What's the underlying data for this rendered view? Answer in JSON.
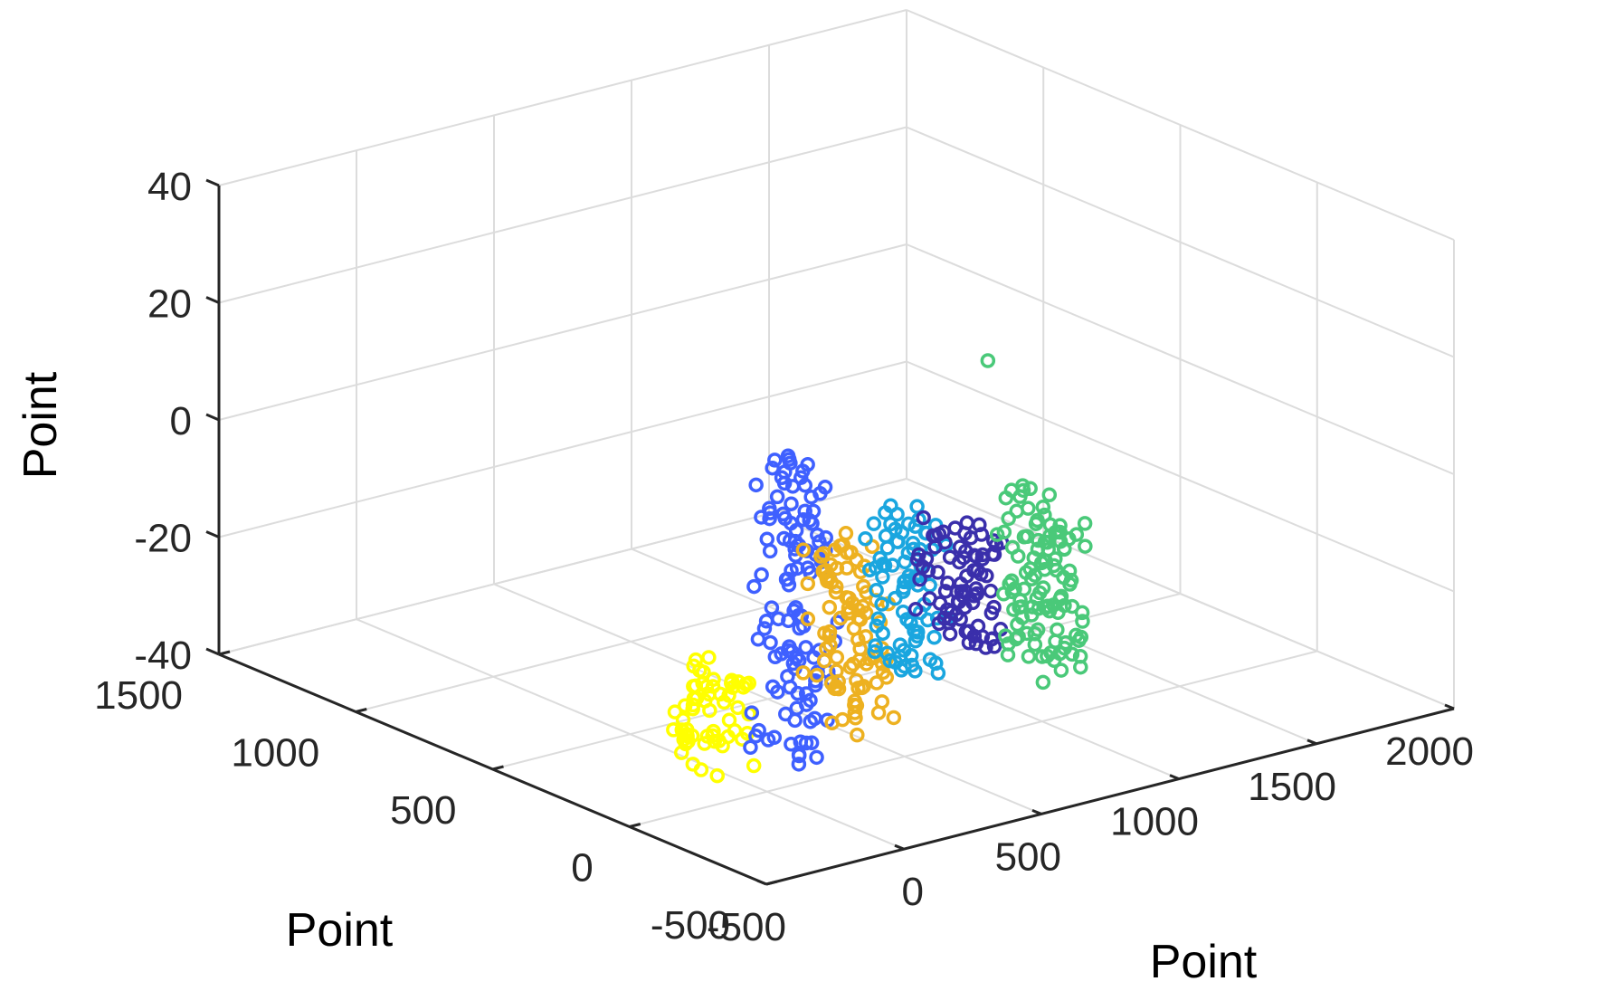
{
  "chart_data": {
    "type": "scatter",
    "projection": "3d",
    "xlabel": "Point",
    "ylabel": "Point",
    "zlabel": "Point",
    "xlim": [
      -500,
      2000
    ],
    "ylim": [
      -500,
      1500
    ],
    "zlim": [
      -40,
      40
    ],
    "x_ticks": [
      "-500",
      "0",
      "500",
      "1000",
      "1500",
      "2000"
    ],
    "y_ticks": [
      "-500",
      "0",
      "500",
      "1000",
      "1500"
    ],
    "z_ticks": [
      "-40",
      "-20",
      "0",
      "20",
      "40"
    ],
    "grid": true,
    "marker": "circle-open",
    "series": [
      {
        "color": "#ffff00",
        "x": 0,
        "y": 200,
        "z_range": [
          -40,
          -22
        ],
        "count": 60
      },
      {
        "color": "#3f60ff",
        "x": 250,
        "y": 150,
        "z_range": [
          -40,
          10
        ],
        "count": 120
      },
      {
        "color": "#edb120",
        "x": 450,
        "y": 150,
        "z_range": [
          -36,
          -6
        ],
        "count": 90
      },
      {
        "color": "#1aa6df",
        "x": 700,
        "y": 200,
        "z_range": [
          -32,
          -4
        ],
        "count": 80
      },
      {
        "color": "#3a2fab",
        "x": 950,
        "y": 250,
        "z_range": [
          -30,
          -10
        ],
        "count": 80
      },
      {
        "color": "#4ac979",
        "x": 1150,
        "y": 150,
        "z_range": [
          -36,
          -6
        ],
        "count": 110,
        "outlier": {
          "x": 1400,
          "y": 600,
          "z": 5
        }
      }
    ]
  }
}
